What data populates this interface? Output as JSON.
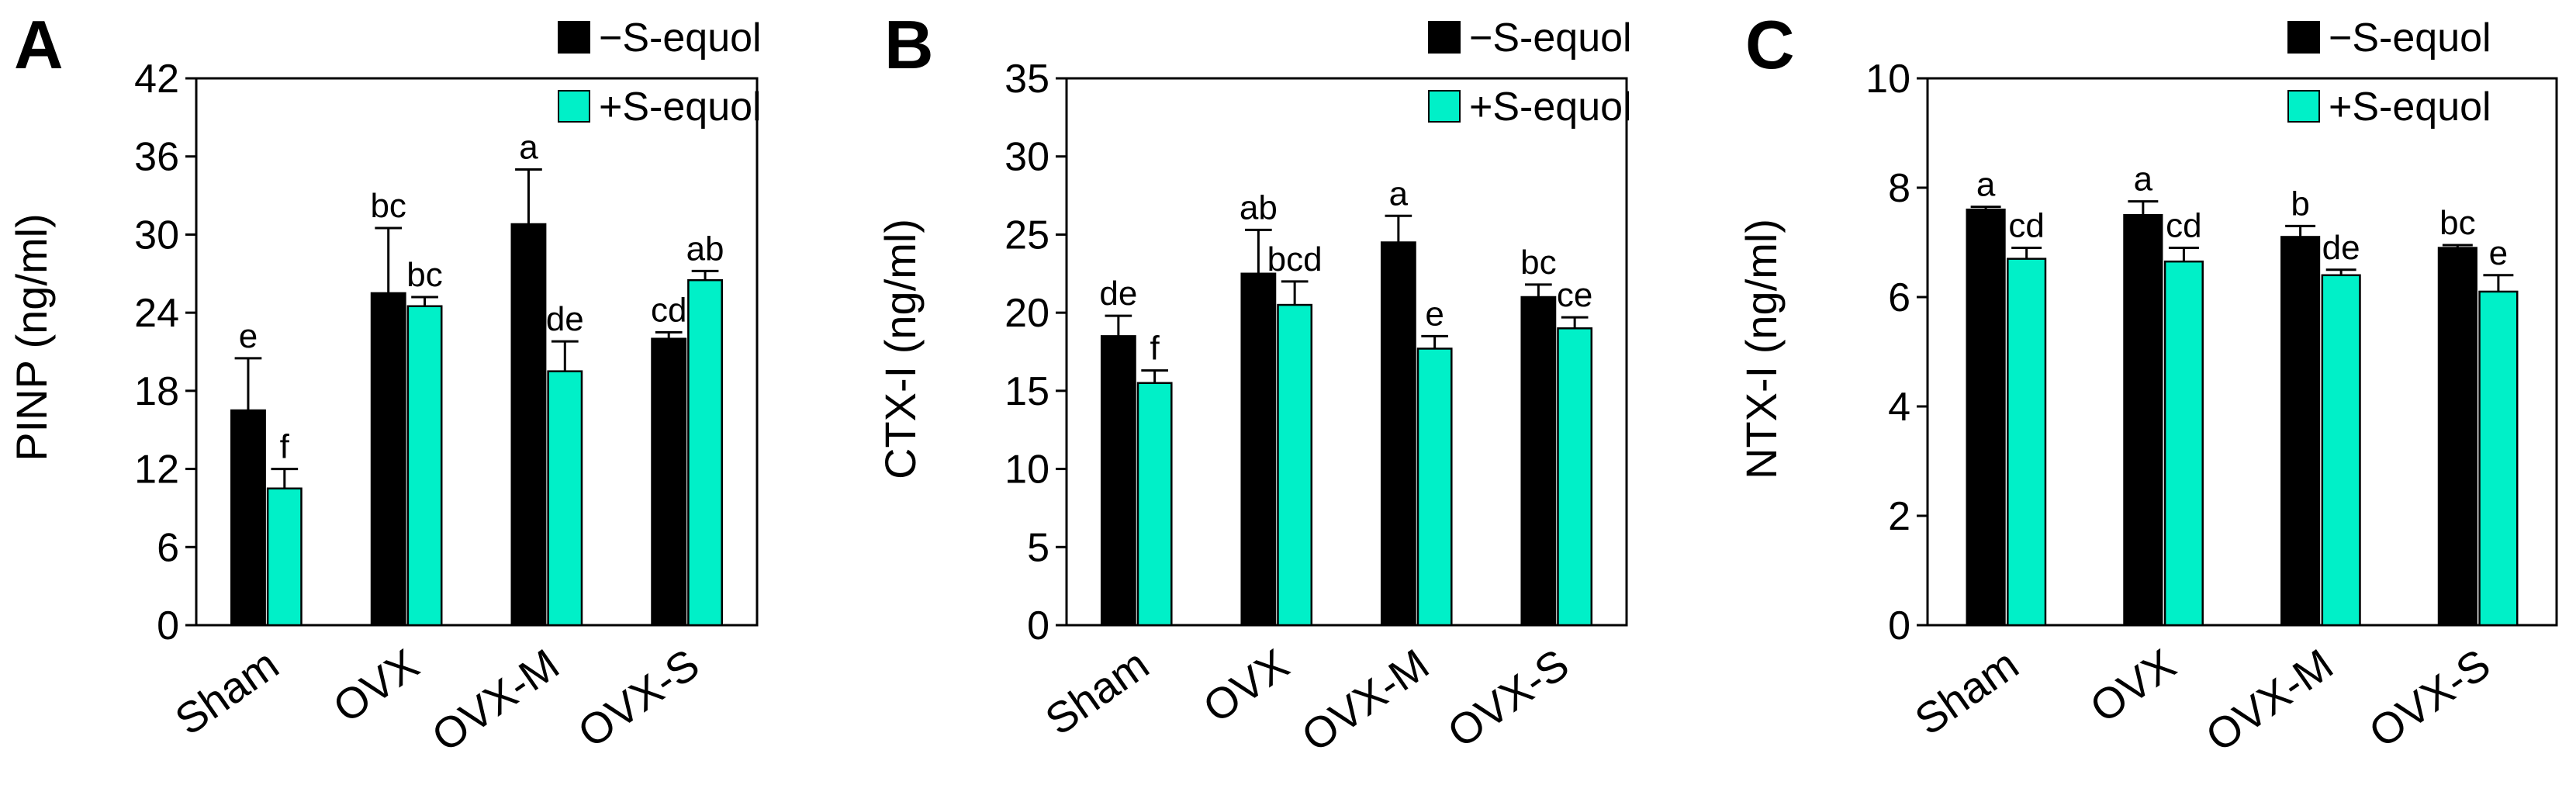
{
  "legend": {
    "series1": "−S-equol",
    "series2": "+S-equol",
    "color1": "#000000",
    "color2": "#00f0c8"
  },
  "chart_data": [
    {
      "type": "bar",
      "panel": "A",
      "ylabel": "PINP (ng/ml)",
      "xlabel": "",
      "ylim": [
        0,
        42
      ],
      "yticks": [
        0,
        6,
        12,
        18,
        24,
        30,
        36,
        42
      ],
      "categories": [
        "Sham",
        "OVX",
        "OVX-M",
        "OVX-S"
      ],
      "series": [
        {
          "name": "−S-equol",
          "values": [
            16.5,
            25.5,
            30.8,
            22.0
          ],
          "errors": [
            4.0,
            5.0,
            4.2,
            0.5
          ],
          "labels": [
            "e",
            "bc",
            "a",
            "cd"
          ]
        },
        {
          "name": "+S-equol",
          "values": [
            10.5,
            24.5,
            19.5,
            26.5
          ],
          "errors": [
            1.5,
            0.7,
            2.3,
            0.7
          ],
          "labels": [
            "f",
            "bc",
            "de",
            "ab"
          ]
        }
      ]
    },
    {
      "type": "bar",
      "panel": "B",
      "ylabel": "CTX-I (ng/ml)",
      "xlabel": "",
      "ylim": [
        0,
        35
      ],
      "yticks": [
        0,
        5,
        10,
        15,
        20,
        25,
        30,
        35
      ],
      "categories": [
        "Sham",
        "OVX",
        "OVX-M",
        "OVX-S"
      ],
      "series": [
        {
          "name": "−S-equol",
          "values": [
            18.5,
            22.5,
            24.5,
            21.0
          ],
          "errors": [
            1.3,
            2.8,
            1.7,
            0.8
          ],
          "labels": [
            "de",
            "ab",
            "a",
            "bc"
          ]
        },
        {
          "name": "+S-equol",
          "values": [
            15.5,
            20.5,
            17.7,
            19.0
          ],
          "errors": [
            0.8,
            1.5,
            0.8,
            0.7
          ],
          "labels": [
            "f",
            "bcd",
            "e",
            "ce"
          ]
        }
      ]
    },
    {
      "type": "bar",
      "panel": "C",
      "ylabel": "NTX-I (ng/ml)",
      "xlabel": "",
      "ylim": [
        0,
        10
      ],
      "yticks": [
        0,
        2,
        4,
        6,
        8,
        10
      ],
      "categories": [
        "Sham",
        "OVX",
        "OVX-M",
        "OVX-S"
      ],
      "series": [
        {
          "name": "−S-equol",
          "values": [
            7.6,
            7.5,
            7.1,
            6.9
          ],
          "errors": [
            0.05,
            0.25,
            0.2,
            0.05
          ],
          "labels": [
            "a",
            "a",
            "b",
            "bc"
          ]
        },
        {
          "name": "+S-equol",
          "values": [
            6.7,
            6.65,
            6.4,
            6.1
          ],
          "errors": [
            0.2,
            0.25,
            0.1,
            0.3
          ],
          "labels": [
            "cd",
            "cd",
            "de",
            "e"
          ]
        }
      ]
    }
  ]
}
